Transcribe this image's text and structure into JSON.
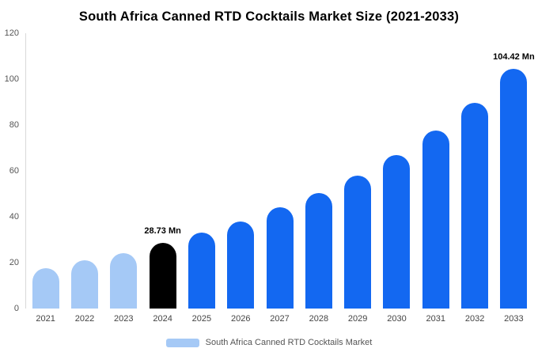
{
  "chart_data": {
    "type": "bar",
    "title": "South Africa Canned RTD Cocktails Market Size (2021-2033)",
    "unit": "Mn",
    "categories": [
      "2021",
      "2022",
      "2023",
      "2024",
      "2025",
      "2026",
      "2027",
      "2028",
      "2029",
      "2030",
      "2031",
      "2032",
      "2033"
    ],
    "values": [
      17.5,
      21,
      24,
      28.73,
      33,
      38,
      44,
      50.5,
      58,
      67,
      77.5,
      89.5,
      104.42
    ],
    "ylim": [
      0,
      120
    ],
    "y_ticks": [
      0,
      20,
      40,
      60,
      80,
      100,
      120
    ],
    "grid": false,
    "legend_position": "bottom",
    "annotations": [
      {
        "index": 3,
        "text": "28.73 Mn"
      },
      {
        "index": 12,
        "text": "104.42 Mn"
      }
    ],
    "bar_colors": [
      "#a5c9f6",
      "#a5c9f6",
      "#a5c9f6",
      "#000000",
      "#1368f1",
      "#1368f1",
      "#1368f1",
      "#1368f1",
      "#1368f1",
      "#1368f1",
      "#1368f1",
      "#1368f1",
      "#1368f1"
    ]
  },
  "legend": {
    "label": "South Africa Canned RTD Cocktails Market",
    "swatch_color": "#a5c9f6"
  }
}
